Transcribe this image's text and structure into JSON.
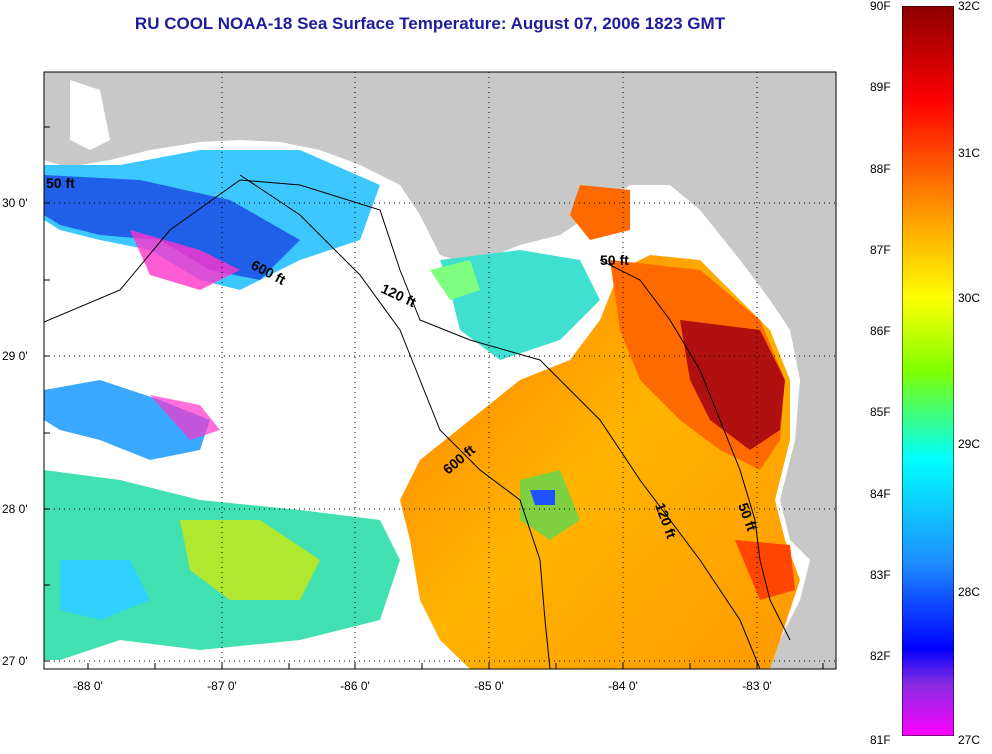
{
  "title": "RU COOL  NOAA-18  Sea Surface Temperature:  August 07, 2006 1823 GMT",
  "axes": {
    "longitude_labels": [
      "-88 0'",
      "-87 0'",
      "-86 0'",
      "-85 0'",
      "-84 0'",
      "-83 0'"
    ],
    "latitude_labels": [
      "30 0'",
      "29 0'",
      "28 0'",
      "27 0'"
    ]
  },
  "contours": [
    "50 ft",
    "600 ft",
    "120 ft",
    "50 ft",
    "600 ft",
    "120 ft",
    "50 ft"
  ],
  "colorbar": {
    "fahrenheit_labels": [
      "90F",
      "89F",
      "88F",
      "87F",
      "86F",
      "85F",
      "84F",
      "83F",
      "82F",
      "81F"
    ],
    "celsius_labels": [
      "32C",
      "31C",
      "30C",
      "29C",
      "28C",
      "27C"
    ],
    "gradient_colors": [
      "#8b0000",
      "#ff0000",
      "#ff8c00",
      "#ffff00",
      "#7fff00",
      "#00ffff",
      "#1e90ff",
      "#0000ff",
      "#800080",
      "#ff00ff"
    ]
  },
  "colors": {
    "land": "#c8c8c8",
    "cloud": "#ffffff",
    "title": "#1c1c9c"
  }
}
